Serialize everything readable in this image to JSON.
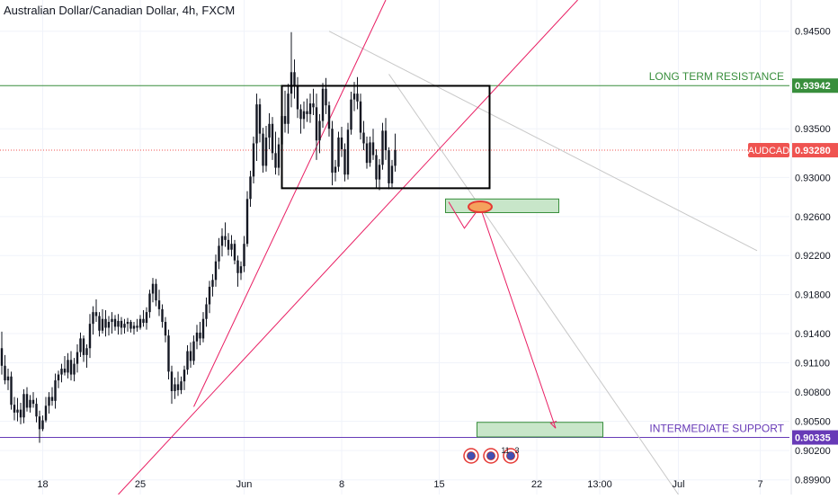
{
  "header": {
    "title": "Australian Dollar/Canadian Dollar, 4h, FXCM"
  },
  "colors": {
    "up": "#131722",
    "down": "#131722",
    "resistance": "#388e3c",
    "support": "#673ab7",
    "current": "#ef5350",
    "trend": "#e91e63",
    "zone_fill": "#c8e6c9",
    "zone_stroke": "#388e3c"
  },
  "chart_data": {
    "type": "candlestick",
    "title": "Australian Dollar/Canadian Dollar, 4h, FXCM",
    "symbol": "AUDCAD",
    "ylim": [
      0.8975,
      0.9482
    ],
    "y_ticks": [
      "0.94500",
      "0.93942",
      "0.93500",
      "0.93280",
      "0.93000",
      "0.92600",
      "0.92200",
      "0.91800",
      "0.91400",
      "0.91100",
      "0.90800",
      "0.90500",
      "0.90335",
      "0.90200",
      "0.89900"
    ],
    "plain_ticks": [
      0.945,
      0.935,
      0.93,
      0.926,
      0.922,
      0.918,
      0.914,
      0.911,
      0.908,
      0.905,
      0.902,
      0.899
    ],
    "x_ticks": [
      "18",
      "25",
      "Jun",
      "8",
      "15",
      "22",
      "13:00",
      "Jul",
      "7"
    ],
    "x_tick_bars": [
      13,
      44,
      77,
      108,
      139,
      170,
      190,
      215,
      241
    ],
    "price_labels": [
      {
        "label": "",
        "value": "0.93942",
        "y": 0.93942,
        "color": "#388e3c"
      },
      {
        "label": "AUDCAD",
        "value": "0.93280",
        "y": 0.9328,
        "color": "#ef5350"
      },
      {
        "label": "",
        "value": "0.90335",
        "y": 0.90335,
        "color": "#673ab7"
      }
    ],
    "levels": [
      {
        "name": "LONG TERM RESISTANCE",
        "y": 0.93942,
        "style": "solid",
        "color": "#388e3c"
      },
      {
        "name": "",
        "y": 0.9328,
        "style": "dotted",
        "color": "#ef5350"
      },
      {
        "name": "INTERMEDIATE SUPPORT",
        "y": 0.90335,
        "style": "solid",
        "color": "#673ab7"
      }
    ],
    "annotations": {
      "range_box": {
        "x0": 89,
        "x1": 155,
        "y0": 0.9289,
        "y1": 0.9394
      },
      "zones": [
        {
          "x0": 141,
          "x1": 177,
          "y0": 0.9264,
          "y1": 0.9278
        },
        {
          "x0": 151,
          "x1": 191,
          "y0": 0.9034,
          "y1": 0.9049
        }
      ],
      "target_ellipse": {
        "x": 152,
        "y": 0.927
      },
      "trend_lines": [
        {
          "x0": 37,
          "y0": 0.8975,
          "x1": 183,
          "y1": 0.9482
        },
        {
          "x0": 61,
          "y0": 0.9065,
          "x1": 122,
          "y1": 0.9482
        }
      ],
      "gray_lines": [
        {
          "x0": 104,
          "y0": 0.945,
          "x1": 240,
          "y1": 0.9225
        },
        {
          "x0": 123,
          "y0": 0.9406,
          "x1": 215,
          "y1": 0.8975
        }
      ],
      "projection_arrows": [
        {
          "points": [
            [
              142,
              0.9275
            ],
            [
              147,
              0.9248
            ],
            [
              152,
              0.927
            ]
          ]
        },
        {
          "points": [
            [
              152,
              0.927
            ],
            [
              176,
              0.9043
            ]
          ]
        }
      ],
      "event_labels": [
        "11",
        "3"
      ]
    },
    "ohlc": [
      [
        0.9125,
        0.9142,
        0.9098,
        0.9107
      ],
      [
        0.9107,
        0.9118,
        0.9088,
        0.9092
      ],
      [
        0.9092,
        0.9104,
        0.9082,
        0.9096
      ],
      [
        0.9096,
        0.9101,
        0.9062,
        0.9067
      ],
      [
        0.9067,
        0.9075,
        0.9051,
        0.9059
      ],
      [
        0.9059,
        0.9074,
        0.905,
        0.9062
      ],
      [
        0.9062,
        0.9069,
        0.9047,
        0.9054
      ],
      [
        0.9054,
        0.9083,
        0.9048,
        0.9078
      ],
      [
        0.9078,
        0.9085,
        0.906,
        0.9064
      ],
      [
        0.9064,
        0.9077,
        0.9059,
        0.9072
      ],
      [
        0.9072,
        0.908,
        0.9064,
        0.9068
      ],
      [
        0.9068,
        0.9074,
        0.9049,
        0.9055
      ],
      [
        0.9055,
        0.9061,
        0.9028,
        0.9042
      ],
      [
        0.9042,
        0.9056,
        0.904,
        0.9051
      ],
      [
        0.9051,
        0.9075,
        0.9049,
        0.9066
      ],
      [
        0.9066,
        0.908,
        0.9058,
        0.9075
      ],
      [
        0.9075,
        0.9085,
        0.9066,
        0.9071
      ],
      [
        0.9071,
        0.9099,
        0.9063,
        0.9092
      ],
      [
        0.9092,
        0.9102,
        0.9084,
        0.9098
      ],
      [
        0.9098,
        0.9109,
        0.909,
        0.9104
      ],
      [
        0.9104,
        0.9117,
        0.9097,
        0.91
      ],
      [
        0.91,
        0.912,
        0.9094,
        0.9113
      ],
      [
        0.9113,
        0.9122,
        0.9092,
        0.9098
      ],
      [
        0.9098,
        0.9115,
        0.9091,
        0.9109
      ],
      [
        0.9109,
        0.9129,
        0.91,
        0.9121
      ],
      [
        0.9121,
        0.9141,
        0.9116,
        0.9135
      ],
      [
        0.9135,
        0.9138,
        0.9111,
        0.9118
      ],
      [
        0.9118,
        0.9129,
        0.9105,
        0.9125
      ],
      [
        0.9125,
        0.916,
        0.9115,
        0.915
      ],
      [
        0.915,
        0.9168,
        0.9139,
        0.9162
      ],
      [
        0.9162,
        0.9175,
        0.9152,
        0.9158
      ],
      [
        0.9158,
        0.9162,
        0.9137,
        0.9143
      ],
      [
        0.9143,
        0.9165,
        0.914,
        0.9155
      ],
      [
        0.9155,
        0.9164,
        0.9137,
        0.9146
      ],
      [
        0.9146,
        0.9158,
        0.9138,
        0.9152
      ],
      [
        0.9152,
        0.9162,
        0.914,
        0.9155
      ],
      [
        0.9155,
        0.9159,
        0.9143,
        0.9147
      ],
      [
        0.9147,
        0.916,
        0.9139,
        0.9153
      ],
      [
        0.9153,
        0.9157,
        0.9139,
        0.9146
      ],
      [
        0.9146,
        0.9155,
        0.914,
        0.915
      ],
      [
        0.915,
        0.9156,
        0.9142,
        0.9152
      ],
      [
        0.9152,
        0.9154,
        0.9141,
        0.9145
      ],
      [
        0.9145,
        0.9152,
        0.9139,
        0.9148
      ],
      [
        0.9148,
        0.9155,
        0.9142,
        0.9146
      ],
      [
        0.9146,
        0.9159,
        0.9144,
        0.9155
      ],
      [
        0.9155,
        0.9164,
        0.9147,
        0.9151
      ],
      [
        0.9151,
        0.9167,
        0.9144,
        0.9162
      ],
      [
        0.9162,
        0.9185,
        0.9156,
        0.9181
      ],
      [
        0.9181,
        0.9197,
        0.9172,
        0.9191
      ],
      [
        0.9191,
        0.9196,
        0.9168,
        0.9174
      ],
      [
        0.9174,
        0.9185,
        0.9158,
        0.9165
      ],
      [
        0.9165,
        0.917,
        0.9146,
        0.9152
      ],
      [
        0.9152,
        0.9157,
        0.9131,
        0.9138
      ],
      [
        0.9138,
        0.9144,
        0.9093,
        0.9101
      ],
      [
        0.9101,
        0.9107,
        0.9068,
        0.9081
      ],
      [
        0.9081,
        0.9095,
        0.9073,
        0.9088
      ],
      [
        0.9088,
        0.9101,
        0.9076,
        0.9082
      ],
      [
        0.9082,
        0.9096,
        0.9078,
        0.9091
      ],
      [
        0.9091,
        0.9107,
        0.9082,
        0.9103
      ],
      [
        0.9103,
        0.9128,
        0.9098,
        0.9122
      ],
      [
        0.9122,
        0.9131,
        0.9105,
        0.9112
      ],
      [
        0.9112,
        0.9138,
        0.9108,
        0.9132
      ],
      [
        0.9132,
        0.9149,
        0.9124,
        0.9141
      ],
      [
        0.9141,
        0.9152,
        0.9128,
        0.9135
      ],
      [
        0.9135,
        0.9162,
        0.9131,
        0.9155
      ],
      [
        0.9155,
        0.9177,
        0.9147,
        0.917
      ],
      [
        0.917,
        0.9194,
        0.9161,
        0.9188
      ],
      [
        0.9188,
        0.9201,
        0.9178,
        0.9195
      ],
      [
        0.9195,
        0.9221,
        0.9188,
        0.9214
      ],
      [
        0.9214,
        0.9238,
        0.9206,
        0.923
      ],
      [
        0.923,
        0.9248,
        0.9219,
        0.924
      ],
      [
        0.924,
        0.9254,
        0.9229,
        0.9236
      ],
      [
        0.9236,
        0.9243,
        0.922,
        0.9226
      ],
      [
        0.9226,
        0.9241,
        0.9219,
        0.9232
      ],
      [
        0.9232,
        0.9236,
        0.9211,
        0.9215
      ],
      [
        0.9215,
        0.922,
        0.9188,
        0.9202
      ],
      [
        0.9202,
        0.9214,
        0.9195,
        0.9209
      ],
      [
        0.9209,
        0.924,
        0.9203,
        0.9232
      ],
      [
        0.9232,
        0.9286,
        0.9229,
        0.9278
      ],
      [
        0.9278,
        0.9307,
        0.927,
        0.9301
      ],
      [
        0.9301,
        0.9342,
        0.9294,
        0.9335
      ],
      [
        0.9335,
        0.9386,
        0.9317,
        0.9375
      ],
      [
        0.9375,
        0.9381,
        0.9336,
        0.9345
      ],
      [
        0.9345,
        0.9351,
        0.9305,
        0.9312
      ],
      [
        0.9312,
        0.9353,
        0.9306,
        0.9341
      ],
      [
        0.9341,
        0.9366,
        0.9329,
        0.9355
      ],
      [
        0.9355,
        0.9362,
        0.9318,
        0.9325
      ],
      [
        0.9325,
        0.9347,
        0.9303,
        0.931
      ],
      [
        0.931,
        0.9341,
        0.9302,
        0.9334
      ],
      [
        0.9334,
        0.9372,
        0.9328,
        0.9363
      ],
      [
        0.9363,
        0.9389,
        0.9346,
        0.9355
      ],
      [
        0.9355,
        0.9396,
        0.9345,
        0.9386
      ],
      [
        0.9386,
        0.9449,
        0.9372,
        0.9408
      ],
      [
        0.9408,
        0.9421,
        0.9381,
        0.9394
      ],
      [
        0.9394,
        0.9403,
        0.9361,
        0.937
      ],
      [
        0.937,
        0.9375,
        0.9345,
        0.936
      ],
      [
        0.936,
        0.9378,
        0.935,
        0.9368
      ],
      [
        0.9368,
        0.9381,
        0.9357,
        0.9365
      ],
      [
        0.9365,
        0.9386,
        0.9356,
        0.9376
      ],
      [
        0.9376,
        0.9391,
        0.9364,
        0.9372
      ],
      [
        0.9372,
        0.9386,
        0.9318,
        0.9338
      ],
      [
        0.9338,
        0.9365,
        0.9325,
        0.9358
      ],
      [
        0.9358,
        0.9397,
        0.9351,
        0.9391
      ],
      [
        0.9391,
        0.9402,
        0.9365,
        0.9374
      ],
      [
        0.9374,
        0.9378,
        0.9342,
        0.935
      ],
      [
        0.935,
        0.9358,
        0.9292,
        0.9305
      ],
      [
        0.9305,
        0.9318,
        0.9296,
        0.9311
      ],
      [
        0.9311,
        0.9347,
        0.9306,
        0.9341
      ],
      [
        0.9341,
        0.9352,
        0.9321,
        0.9329
      ],
      [
        0.9329,
        0.9335,
        0.9296,
        0.9303
      ],
      [
        0.9303,
        0.9356,
        0.9298,
        0.9349
      ],
      [
        0.9349,
        0.9388,
        0.9344,
        0.938
      ],
      [
        0.938,
        0.9398,
        0.9368,
        0.9386
      ],
      [
        0.9386,
        0.9403,
        0.937,
        0.9378
      ],
      [
        0.9378,
        0.9386,
        0.9339,
        0.9346
      ],
      [
        0.9346,
        0.9358,
        0.9328,
        0.9335
      ],
      [
        0.9335,
        0.9342,
        0.9309,
        0.9315
      ],
      [
        0.9315,
        0.9342,
        0.9311,
        0.9336
      ],
      [
        0.9336,
        0.935,
        0.9318,
        0.9323
      ],
      [
        0.9323,
        0.9329,
        0.9289,
        0.9298
      ],
      [
        0.9298,
        0.9319,
        0.9287,
        0.9313
      ],
      [
        0.9313,
        0.9356,
        0.9308,
        0.9348
      ],
      [
        0.9348,
        0.9361,
        0.9318,
        0.9328
      ],
      [
        0.9328,
        0.9331,
        0.9288,
        0.9294
      ],
      [
        0.9294,
        0.9318,
        0.929,
        0.9312
      ],
      [
        0.9312,
        0.9345,
        0.9306,
        0.9328
      ]
    ]
  }
}
